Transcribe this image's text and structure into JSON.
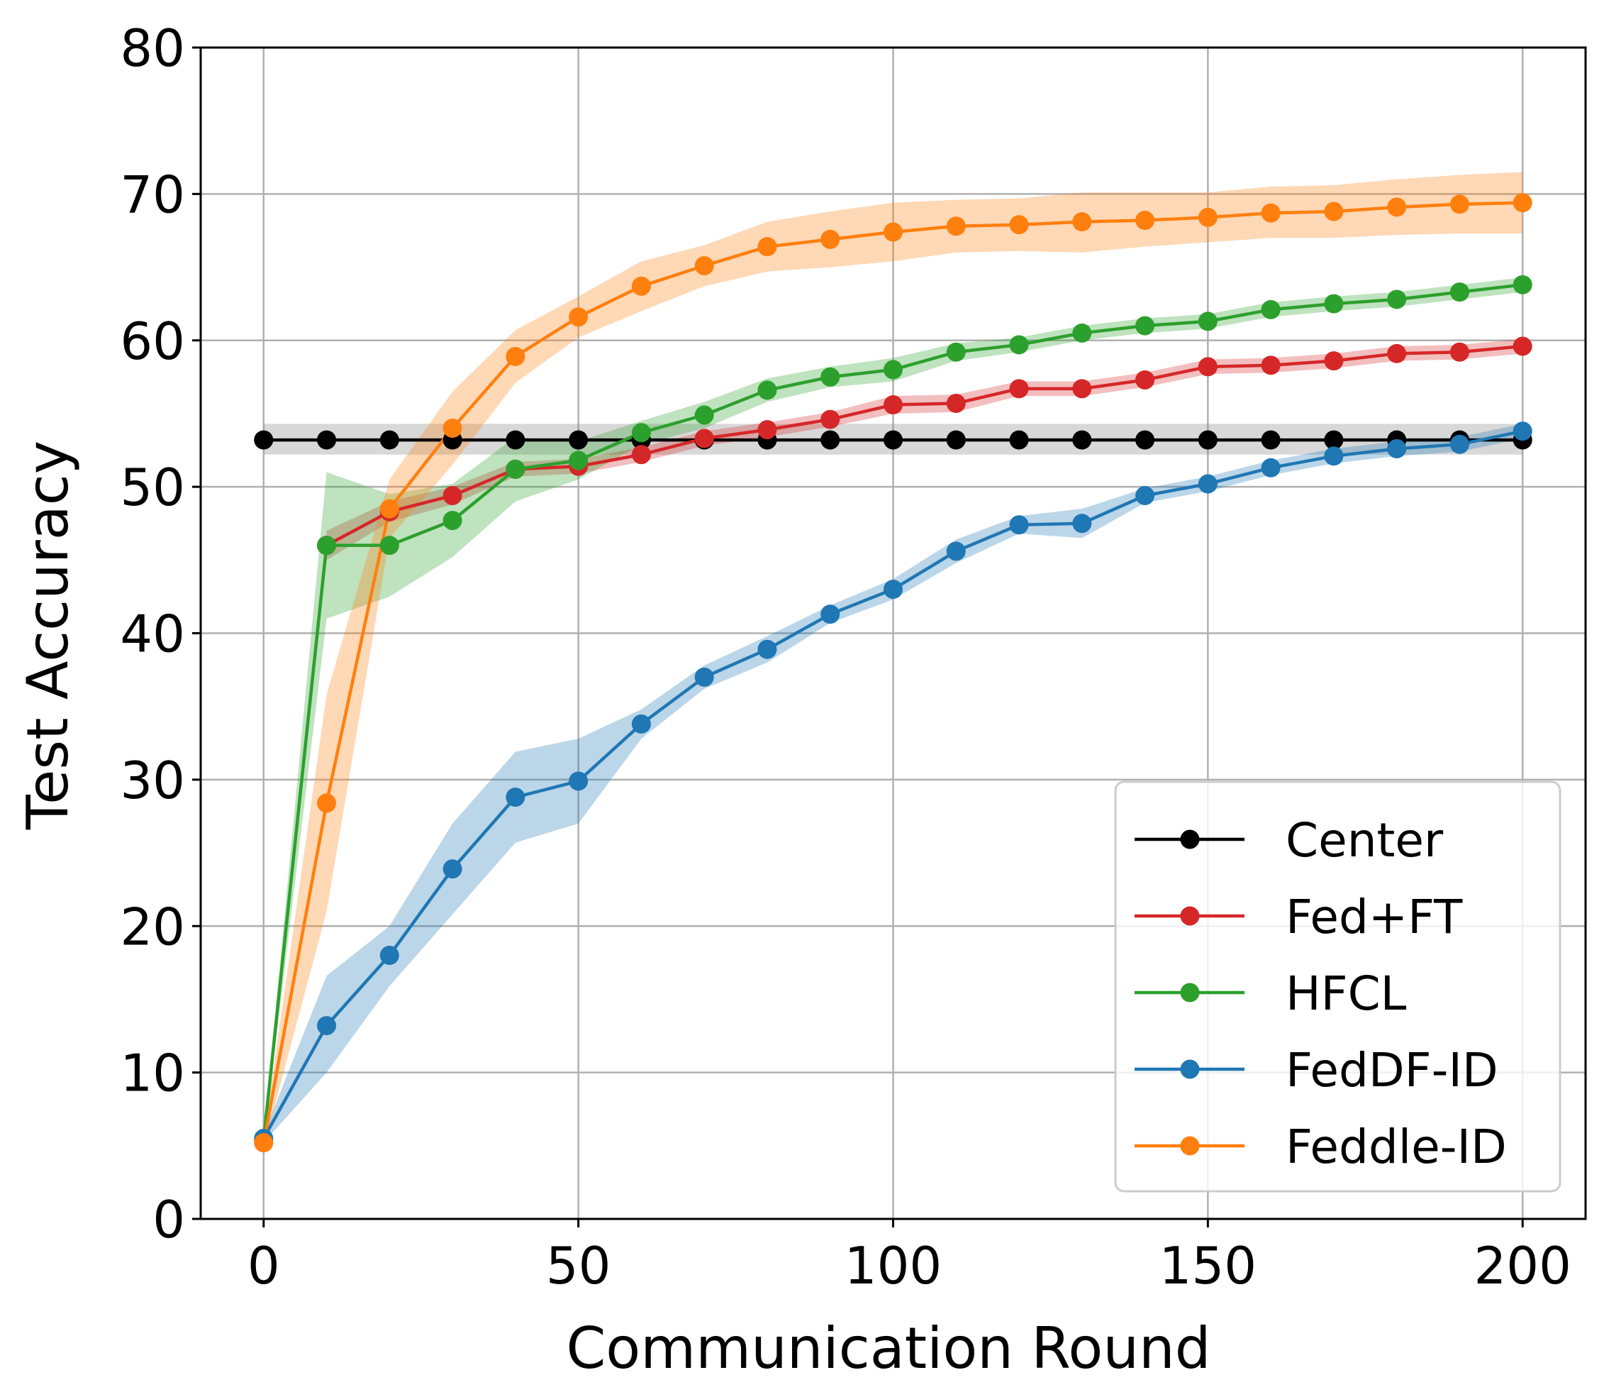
{
  "chart_data": {
    "type": "line",
    "xlabel": "Communication Round",
    "ylabel": "Test Accuracy",
    "xlim": [
      -10,
      210
    ],
    "ylim": [
      0,
      80
    ],
    "xticks": [
      0,
      50,
      100,
      150,
      200
    ],
    "yticks": [
      0,
      10,
      20,
      30,
      40,
      50,
      60,
      70,
      80
    ],
    "grid": true,
    "legend_position": "bottom-right",
    "x": [
      0,
      10,
      20,
      30,
      40,
      50,
      60,
      70,
      80,
      90,
      100,
      110,
      120,
      130,
      140,
      150,
      160,
      170,
      180,
      190,
      200
    ],
    "series": [
      {
        "name": "Center",
        "color": "#000000",
        "band_color": "#7f7f7f",
        "x": [
          0,
          10,
          20,
          30,
          40,
          50,
          60,
          70,
          80,
          90,
          100,
          110,
          120,
          130,
          140,
          150,
          160,
          170,
          180,
          190,
          200
        ],
        "values": [
          53.2,
          53.2,
          53.2,
          53.2,
          53.2,
          53.2,
          53.2,
          53.2,
          53.2,
          53.2,
          53.2,
          53.2,
          53.2,
          53.2,
          53.2,
          53.2,
          53.2,
          53.2,
          53.2,
          53.2,
          53.2
        ],
        "band_low": [
          52.2,
          52.2,
          52.2,
          52.2,
          52.2,
          52.2,
          52.2,
          52.2,
          52.2,
          52.2,
          52.2,
          52.2,
          52.2,
          52.2,
          52.2,
          52.2,
          52.2,
          52.2,
          52.2,
          52.2,
          52.2
        ],
        "band_high": [
          54.3,
          54.3,
          54.3,
          54.3,
          54.3,
          54.3,
          54.3,
          54.3,
          54.3,
          54.3,
          54.3,
          54.3,
          54.3,
          54.3,
          54.3,
          54.3,
          54.3,
          54.3,
          54.3,
          54.3,
          54.3
        ]
      },
      {
        "name": "Fed+FT",
        "color": "#d62728",
        "x": [
          10,
          20,
          30,
          40,
          50,
          60,
          70,
          80,
          90,
          100,
          110,
          120,
          130,
          140,
          150,
          160,
          170,
          180,
          190,
          200
        ],
        "values": [
          46.0,
          48.3,
          49.4,
          51.2,
          51.4,
          52.2,
          53.3,
          53.9,
          54.6,
          55.6,
          55.7,
          56.7,
          56.7,
          57.3,
          58.2,
          58.3,
          58.6,
          59.1,
          59.2,
          59.6
        ],
        "band_low": [
          45.0,
          47.6,
          48.8,
          50.7,
          50.9,
          51.7,
          52.8,
          53.4,
          54.1,
          55.0,
          55.1,
          56.2,
          56.2,
          56.8,
          57.7,
          57.8,
          58.1,
          58.6,
          58.7,
          59.1
        ],
        "band_high": [
          47.0,
          49.0,
          50.0,
          51.7,
          51.9,
          52.7,
          53.8,
          54.4,
          55.1,
          56.2,
          56.3,
          57.2,
          57.2,
          57.8,
          58.7,
          58.8,
          59.1,
          59.6,
          59.7,
          60.1
        ]
      },
      {
        "name": "HFCL",
        "color": "#2ca02c",
        "x": [
          0,
          10,
          20,
          30,
          40,
          50,
          60,
          70,
          80,
          90,
          100,
          110,
          120,
          130,
          140,
          150,
          160,
          170,
          180,
          190,
          200
        ],
        "values": [
          5.4,
          46.0,
          46.0,
          47.7,
          51.2,
          51.8,
          53.7,
          54.9,
          56.6,
          57.5,
          58.0,
          59.2,
          59.7,
          60.5,
          61.0,
          61.3,
          62.1,
          62.5,
          62.8,
          63.3,
          63.8
        ],
        "band_low": [
          5.1,
          41.0,
          42.5,
          45.2,
          49.0,
          50.5,
          52.9,
          54.0,
          55.8,
          56.8,
          57.2,
          58.6,
          59.2,
          60.0,
          60.5,
          60.8,
          61.6,
          62.0,
          62.3,
          62.8,
          63.3
        ],
        "band_high": [
          5.7,
          51.0,
          49.5,
          50.2,
          53.4,
          53.1,
          54.5,
          55.8,
          57.4,
          58.2,
          58.8,
          59.8,
          60.2,
          61.0,
          61.5,
          61.8,
          62.6,
          63.0,
          63.3,
          63.8,
          64.3
        ]
      },
      {
        "name": "FedDF-ID",
        "color": "#1f77b4",
        "x": [
          0,
          10,
          20,
          30,
          40,
          50,
          60,
          70,
          80,
          90,
          100,
          110,
          120,
          130,
          140,
          150,
          160,
          170,
          180,
          190,
          200
        ],
        "values": [
          5.5,
          13.2,
          18.0,
          23.9,
          28.8,
          29.9,
          33.8,
          37.0,
          38.9,
          41.3,
          43.0,
          45.6,
          47.4,
          47.5,
          49.4,
          50.2,
          51.3,
          52.1,
          52.6,
          52.9,
          53.8
        ],
        "band_low": [
          5.2,
          10.0,
          15.9,
          20.8,
          25.7,
          27.0,
          32.8,
          36.2,
          38.0,
          40.7,
          42.3,
          44.8,
          46.8,
          46.5,
          48.9,
          49.7,
          50.8,
          51.6,
          52.1,
          52.4,
          53.3
        ],
        "band_high": [
          5.8,
          16.6,
          20.0,
          27.0,
          31.9,
          32.8,
          34.8,
          37.8,
          39.8,
          41.9,
          43.7,
          46.4,
          48.0,
          48.5,
          49.9,
          50.7,
          51.8,
          52.6,
          53.1,
          53.4,
          54.3
        ]
      },
      {
        "name": "Feddle-ID",
        "color": "#ff7f0e",
        "x": [
          0,
          10,
          20,
          30,
          40,
          50,
          60,
          70,
          80,
          90,
          100,
          110,
          120,
          130,
          140,
          150,
          160,
          170,
          180,
          190,
          200
        ],
        "values": [
          5.2,
          28.4,
          48.5,
          54.0,
          58.9,
          61.6,
          63.7,
          65.1,
          66.4,
          66.9,
          67.4,
          67.8,
          67.9,
          68.1,
          68.2,
          68.4,
          68.7,
          68.8,
          69.1,
          69.3,
          69.4
        ],
        "band_low": [
          4.9,
          21.0,
          46.5,
          51.5,
          57.1,
          60.2,
          62.0,
          63.7,
          64.7,
          65.0,
          65.4,
          66.0,
          66.1,
          66.0,
          66.4,
          66.7,
          67.0,
          67.0,
          67.2,
          67.3,
          67.3
        ],
        "band_high": [
          5.5,
          35.8,
          50.5,
          56.5,
          60.7,
          63.0,
          65.4,
          66.5,
          68.1,
          68.8,
          69.4,
          69.6,
          69.7,
          70.1,
          70.1,
          70.1,
          70.5,
          70.6,
          71.0,
          71.3,
          71.5
        ]
      }
    ]
  }
}
